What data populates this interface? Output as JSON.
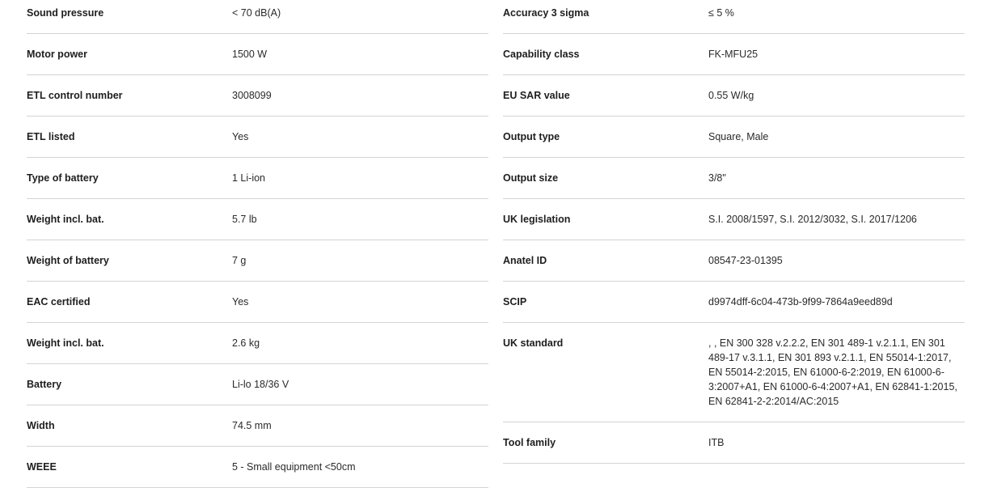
{
  "left": [
    {
      "label": "Sound pressure",
      "value": "< 70 dB(A)"
    },
    {
      "label": "Motor power",
      "value": "1500 W"
    },
    {
      "label": "ETL control number",
      "value": "3008099"
    },
    {
      "label": "ETL listed",
      "value": "Yes"
    },
    {
      "label": "Type of battery",
      "value": "1 Li-ion"
    },
    {
      "label": "Weight incl. bat.",
      "value": "5.7 lb"
    },
    {
      "label": "Weight of battery",
      "value": "7 g"
    },
    {
      "label": "EAC certified",
      "value": "Yes"
    },
    {
      "label": "Weight incl. bat.",
      "value": "2.6 kg"
    },
    {
      "label": "Battery",
      "value": "Li-lo 18/36 V"
    },
    {
      "label": "Width",
      "value": "74.5 mm"
    },
    {
      "label": "WEEE",
      "value": "5 - Small equipment <50cm"
    }
  ],
  "right": [
    {
      "label": "Accuracy 3 sigma",
      "value": "≤ 5 %"
    },
    {
      "label": "Capability class",
      "value": "FK-MFU25"
    },
    {
      "label": "EU SAR value",
      "value": "0.55 W/kg"
    },
    {
      "label": "Output type",
      "value": "Square, Male"
    },
    {
      "label": "Output size",
      "value": "3/8\""
    },
    {
      "label": "UK legislation",
      "value": "S.I. 2008/1597, S.I. 2012/3032, S.I. 2017/1206"
    },
    {
      "label": "Anatel ID",
      "value": "08547-23-01395"
    },
    {
      "label": "SCIP",
      "value": "d9974dff-6c04-473b-9f99-7864a9eed89d"
    },
    {
      "label": "UK standard",
      "value": ", , EN 300 328 v.2.2.2, EN 301 489-1 v.2.1.1, EN 301 489-17 v.3.1.1, EN 301 893 v.2.1.1, EN 55014-1:2017, EN 55014-2:2015, EN 61000-6-2:2019, EN 61000-6-3:2007+A1, EN 61000-6-4:2007+A1, EN 62841-1:2015, EN 62841-2-2:2014/AC:2015"
    },
    {
      "label": "Tool family",
      "value": "ITB"
    }
  ]
}
